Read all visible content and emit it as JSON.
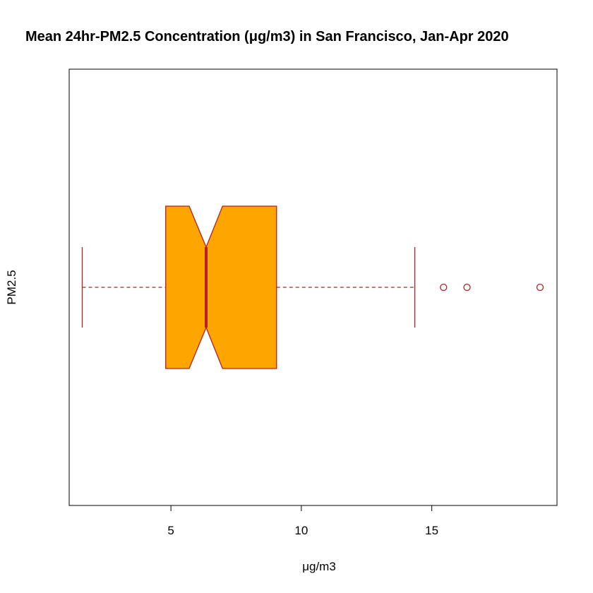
{
  "chart_data": {
    "type": "boxplot",
    "orientation": "horizontal",
    "notched": true,
    "title": "Mean 24hr-PM2.5 Concentration (μg/m3) in San Francisco, Jan-Apr 2020",
    "xlabel": "μg/m3",
    "ylabel": "PM2.5",
    "xlim": [
      1.1,
      19.8
    ],
    "xticks": [
      5,
      10,
      15
    ],
    "xtick_labels": [
      "5",
      "10",
      "15"
    ],
    "box": {
      "whisker_low": 1.6,
      "q1": 4.8,
      "median": 6.35,
      "q3": 9.05,
      "whisker_high": 14.35,
      "notch_low": 5.7,
      "notch_high": 6.98,
      "outliers": [
        15.45,
        16.35,
        19.15
      ]
    },
    "colors": {
      "box_fill": "#FFA500",
      "box_border": "#B22222",
      "median_line": "#B22222",
      "whisker": "#B22222",
      "outlier": "#B22222"
    },
    "grid": false
  }
}
